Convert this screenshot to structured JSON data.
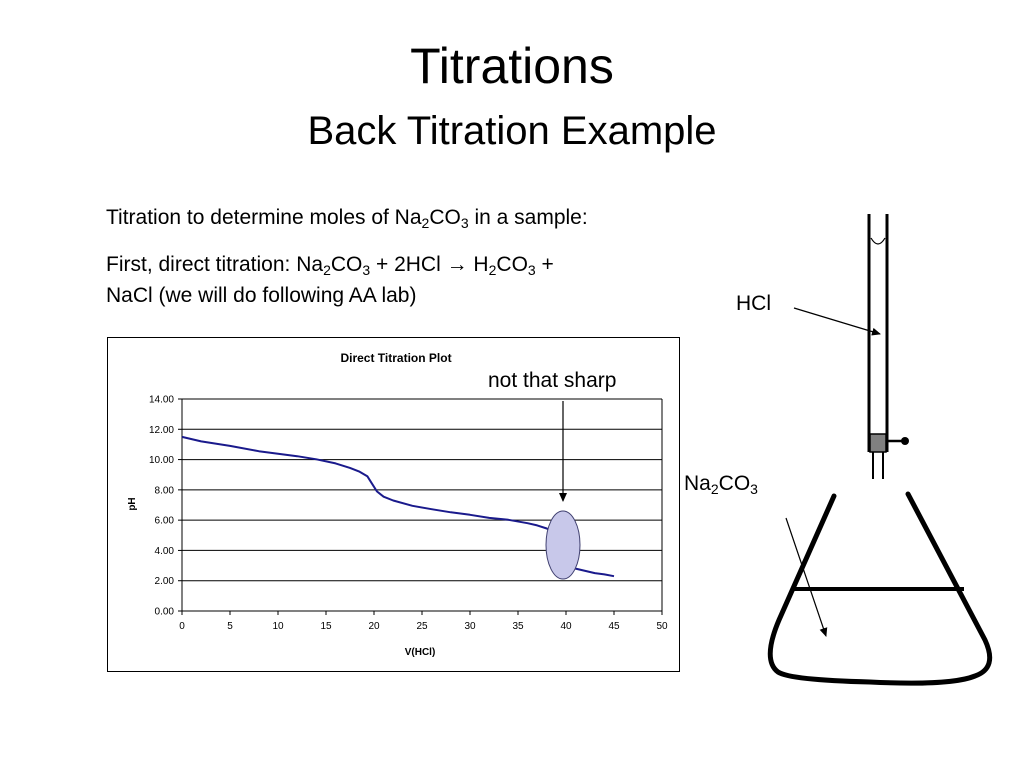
{
  "slide": {
    "title": "Titrations",
    "subtitle": "Back Titration Example",
    "line1": {
      "prefix": "Titration to determine moles of Na",
      "sub1": "2",
      "mid": "CO",
      "sub2": "3",
      "suffix": " in a sample:"
    },
    "line2": {
      "t1": "First, direct titration:  Na",
      "s1": "2",
      "t2": "CO",
      "s2": "3",
      "t3": " + 2HCl → H",
      "s3": "2",
      "t4": "CO",
      "s4": "3",
      "t5": " +"
    },
    "line3": "NaCl (we will do following AA lab)",
    "annotation": "not that sharp",
    "hcl_label": "HCl",
    "na2co3_label": {
      "t1": "Na",
      "s1": "2",
      "t2": "CO",
      "s2": "3"
    }
  },
  "chart_data": {
    "type": "line",
    "title": "Direct Titration Plot",
    "xlabel": "V(HCl)",
    "ylabel": "pH",
    "xlim": [
      0,
      50
    ],
    "ylim": [
      0,
      14
    ],
    "xticks": [
      0,
      5,
      10,
      15,
      20,
      25,
      30,
      35,
      40,
      45,
      50
    ],
    "yticks": [
      "0.00",
      "2.00",
      "4.00",
      "6.00",
      "8.00",
      "10.00",
      "12.00",
      "14.00"
    ],
    "grid": "horizontal",
    "color": "#1a1a8c",
    "highlight_color": "#c8c8ea",
    "series": [
      {
        "x": [
          0,
          2,
          5,
          8,
          10,
          12,
          14,
          16,
          17.5,
          18.5,
          19.3,
          19.8,
          20.3,
          21,
          22,
          24,
          26,
          28,
          30,
          32,
          34,
          36,
          37,
          38,
          38.7,
          39.3,
          39.7,
          40.1,
          40.5,
          41,
          42,
          43,
          44,
          45
        ],
        "y": [
          11.5,
          11.2,
          10.9,
          10.55,
          10.38,
          10.22,
          10.02,
          9.75,
          9.45,
          9.2,
          8.9,
          8.4,
          7.9,
          7.55,
          7.3,
          6.95,
          6.72,
          6.52,
          6.35,
          6.15,
          6.02,
          5.8,
          5.65,
          5.45,
          5.2,
          4.8,
          4.2,
          3.4,
          3.0,
          2.8,
          2.65,
          2.5,
          2.42,
          2.3
        ]
      }
    ]
  }
}
